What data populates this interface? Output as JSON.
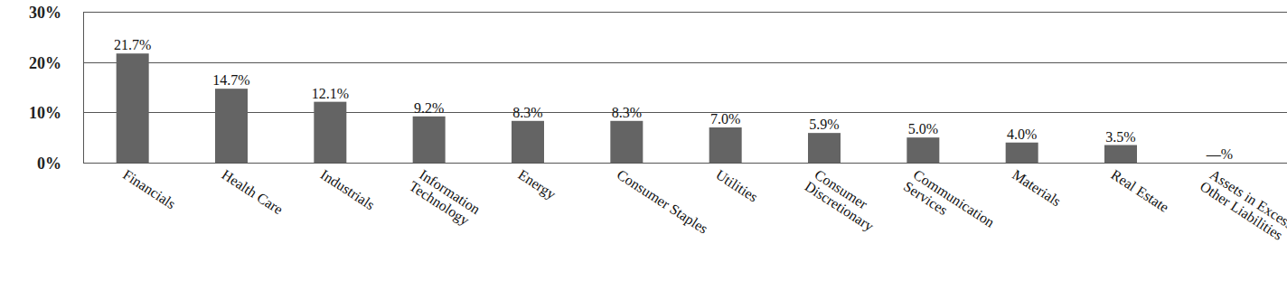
{
  "chart_data": {
    "type": "bar",
    "categories": [
      "Financials",
      "Health Care",
      "Industrials",
      "Information Technology",
      "Energy",
      "Consumer Staples",
      "Utilities",
      "Consumer Discretionary",
      "Communication Services",
      "Materials",
      "Real Estate",
      "Assets in Excess of Other Liabilities"
    ],
    "values": [
      21.7,
      14.7,
      12.1,
      9.2,
      8.3,
      8.3,
      7.0,
      5.9,
      5.0,
      4.0,
      3.5,
      0
    ],
    "value_labels": [
      "21.7%",
      "14.7%",
      "12.1%",
      "9.2%",
      "8.3%",
      "8.3%",
      "7.0%",
      "5.9%",
      "5.0%",
      "4.0%",
      "3.5%",
      "—%"
    ],
    "color": "#646464",
    "ylim": [
      0,
      30
    ],
    "yticks": [
      {
        "value": 0,
        "label": "0%"
      },
      {
        "value": 10,
        "label": "10%"
      },
      {
        "value": 20,
        "label": "20%"
      },
      {
        "value": 30,
        "label": "30%"
      }
    ],
    "grid": true,
    "data_labels": true
  }
}
